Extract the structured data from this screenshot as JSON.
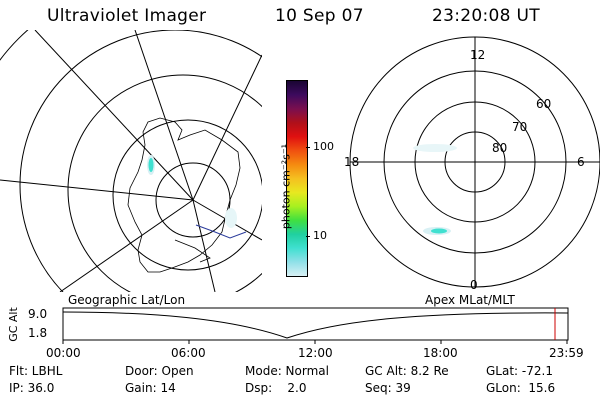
{
  "header": {
    "instrument": "Ultraviolet Imager",
    "date": "10 Sep 07",
    "time": "23:20:08 UT"
  },
  "left_map": {
    "caption": "Geographic Lat/Lon"
  },
  "right_map": {
    "caption": "Apex MLat/MLT",
    "mlt_labels": [
      "12",
      "18",
      "6",
      "0"
    ],
    "lat_labels": [
      "60",
      "70",
      "80"
    ]
  },
  "colorbar": {
    "unit_label": "photon cm⁻²s⁻¹",
    "ticks": [
      "100",
      "10"
    ],
    "scale": "log",
    "colors": [
      "#1a0533",
      "#3d0a5e",
      "#7a0f4f",
      "#b0101a",
      "#e01010",
      "#f05010",
      "#f58a10",
      "#f5c020",
      "#e8e820",
      "#a8f020",
      "#40e040",
      "#20d0a0",
      "#40e0d0",
      "#90e0e8",
      "#d8f0f4"
    ]
  },
  "orbit_plot": {
    "y_title": "GC Alt",
    "y_ticks": [
      "9.0",
      "1.8"
    ],
    "x_ticks": [
      "00:00",
      "06:00",
      "12:00",
      "18:00",
      "23:59"
    ],
    "current_time_marker_color": "#cc0000"
  },
  "status": {
    "row1": {
      "filter": "Flt: LBHL",
      "door": "Door: Open",
      "mode": "Mode: Normal",
      "gc_alt": "GC Alt: 8.2 Re",
      "glat": "GLat: -72.1"
    },
    "row2": {
      "ip": "IP: 36.0",
      "gain": "Gain: 14",
      "dsp": "Dsp:    2.0",
      "seq": "Seq: 39",
      "glon": "GLon:  15.6"
    }
  }
}
